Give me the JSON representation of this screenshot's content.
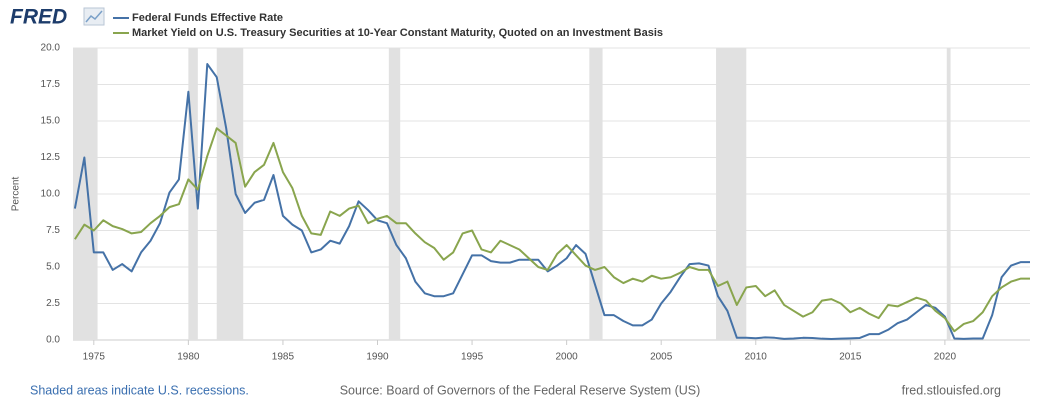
{
  "chart_data": {
    "type": "line",
    "logo": "FRED",
    "ylabel": "Percent",
    "footer": {
      "note": "Shaded areas indicate U.S. recessions.",
      "source": "Source: Board of Governors of the Federal Reserve System (US)",
      "url": "fred.stlouisfed.org"
    },
    "xlim": [
      1973.9,
      2024.5
    ],
    "xticks": [
      1975,
      1980,
      1985,
      1990,
      1995,
      2000,
      2005,
      2010,
      2015,
      2020
    ],
    "ylim": [
      0,
      20
    ],
    "yticks": [
      {
        "value": 0,
        "label": "0.0"
      },
      2.5,
      {
        "value": 5,
        "label": "5.0"
      },
      7.5,
      {
        "value": 10,
        "label": "10.0"
      },
      12.5,
      {
        "value": 15,
        "label": "15.0"
      },
      17.5,
      {
        "value": 20,
        "label": "20.0"
      }
    ],
    "grid": true,
    "recession_color": "#e1e1e1",
    "recessions": [
      [
        1973.9,
        1975.2
      ],
      [
        1980.0,
        1980.5
      ],
      [
        1981.5,
        1982.9
      ],
      [
        1990.6,
        1991.2
      ],
      [
        2001.2,
        2001.9
      ],
      [
        2007.9,
        2009.5
      ],
      [
        2020.1,
        2020.3
      ]
    ],
    "x": [
      1974,
      1974.5,
      1975,
      1975.5,
      1976,
      1976.5,
      1977,
      1977.5,
      1978,
      1978.5,
      1979,
      1979.5,
      1980,
      1980.5,
      1981,
      1981.5,
      1982,
      1982.5,
      1983,
      1983.5,
      1984,
      1984.5,
      1985,
      1985.5,
      1986,
      1986.5,
      1987,
      1987.5,
      1988,
      1988.5,
      1989,
      1989.5,
      1990,
      1990.5,
      1991,
      1991.5,
      1992,
      1992.5,
      1993,
      1993.5,
      1994,
      1994.5,
      1995,
      1995.5,
      1996,
      1996.5,
      1997,
      1997.5,
      1998,
      1998.5,
      1999,
      1999.5,
      2000,
      2000.5,
      2001,
      2001.5,
      2002,
      2002.5,
      2003,
      2003.5,
      2004,
      2004.5,
      2005,
      2005.5,
      2006,
      2006.5,
      2007,
      2007.5,
      2008,
      2008.5,
      2009,
      2009.5,
      2010,
      2010.5,
      2011,
      2011.5,
      2012,
      2012.5,
      2013,
      2013.5,
      2014,
      2014.5,
      2015,
      2015.5,
      2016,
      2016.5,
      2017,
      2017.5,
      2018,
      2018.5,
      2019,
      2019.5,
      2020,
      2020.5,
      2021,
      2021.5,
      2022,
      2022.5,
      2023,
      2023.5,
      2024,
      2024.5
    ],
    "series": [
      {
        "name": "Federal Funds Effective Rate",
        "color": "#4572a7",
        "values": [
          9.0,
          12.5,
          6.0,
          6.0,
          4.8,
          5.2,
          4.7,
          6.0,
          6.8,
          8.0,
          10.1,
          11.0,
          17.0,
          9.0,
          18.9,
          18.0,
          14.5,
          10.0,
          8.7,
          9.4,
          9.6,
          11.3,
          8.5,
          7.9,
          7.5,
          6.0,
          6.2,
          6.8,
          6.6,
          7.8,
          9.5,
          8.9,
          8.2,
          8.0,
          6.5,
          5.6,
          4.0,
          3.2,
          3.0,
          3.0,
          3.2,
          4.5,
          5.8,
          5.8,
          5.4,
          5.3,
          5.3,
          5.5,
          5.5,
          5.5,
          4.7,
          5.1,
          5.6,
          6.5,
          5.9,
          3.8,
          1.7,
          1.7,
          1.3,
          1.0,
          1.0,
          1.4,
          2.5,
          3.3,
          4.3,
          5.2,
          5.25,
          5.1,
          3.0,
          2.0,
          0.15,
          0.15,
          0.12,
          0.18,
          0.15,
          0.08,
          0.1,
          0.15,
          0.14,
          0.09,
          0.07,
          0.09,
          0.11,
          0.14,
          0.4,
          0.4,
          0.7,
          1.15,
          1.4,
          1.9,
          2.4,
          2.2,
          1.6,
          0.1,
          0.08,
          0.1,
          0.1,
          1.7,
          4.3,
          5.1,
          5.33,
          5.33
        ]
      },
      {
        "name": "Market Yield on U.S. Treasury Securities at 10-Year Constant Maturity, Quoted on an Investment Basis",
        "color": "#89a54e",
        "values": [
          6.9,
          7.9,
          7.5,
          8.2,
          7.8,
          7.6,
          7.3,
          7.4,
          8.0,
          8.5,
          9.1,
          9.3,
          11.0,
          10.3,
          12.6,
          14.5,
          14.0,
          13.5,
          10.5,
          11.5,
          12.0,
          13.5,
          11.5,
          10.4,
          8.5,
          7.3,
          7.2,
          8.8,
          8.5,
          9.0,
          9.2,
          8.0,
          8.3,
          8.5,
          8.0,
          8.0,
          7.3,
          6.7,
          6.3,
          5.5,
          6.0,
          7.3,
          7.5,
          6.2,
          6.0,
          6.8,
          6.5,
          6.2,
          5.6,
          5.0,
          4.8,
          5.9,
          6.5,
          5.8,
          5.1,
          4.8,
          5.0,
          4.3,
          3.9,
          4.2,
          4.0,
          4.4,
          4.2,
          4.3,
          4.6,
          5.0,
          4.8,
          4.8,
          3.7,
          4.0,
          2.4,
          3.6,
          3.7,
          3.0,
          3.4,
          2.4,
          2.0,
          1.6,
          1.9,
          2.7,
          2.8,
          2.5,
          1.9,
          2.2,
          1.8,
          1.5,
          2.4,
          2.3,
          2.6,
          2.9,
          2.7,
          2.0,
          1.5,
          0.6,
          1.1,
          1.3,
          1.9,
          3.0,
          3.6,
          4.0,
          4.2,
          4.2
        ]
      }
    ]
  }
}
